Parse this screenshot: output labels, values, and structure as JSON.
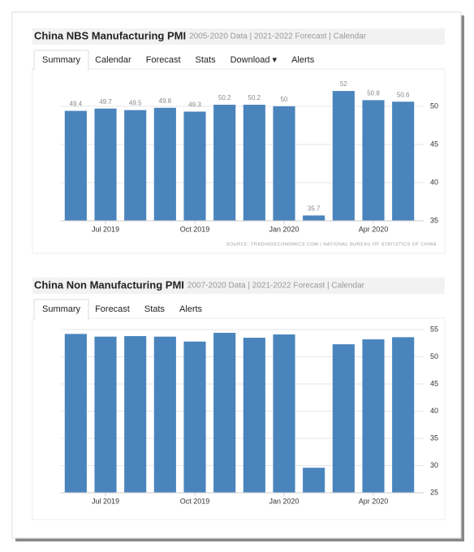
{
  "chart_data": [
    {
      "type": "bar",
      "title": "China NBS Manufacturing PMI",
      "subtitle": "2005-2020 Data | 2021-2022 Forecast | Calendar",
      "tabs": [
        "Summary",
        "Calendar",
        "Forecast",
        "Stats",
        "Download ▾",
        "Alerts"
      ],
      "categories": [
        null,
        "Jul 2019",
        null,
        null,
        "Oct 2019",
        null,
        null,
        "Jan 2020",
        null,
        null,
        "Apr 2020",
        null
      ],
      "values": [
        49.4,
        49.7,
        49.5,
        49.8,
        49.3,
        50.2,
        50.2,
        50,
        35.7,
        52,
        50.8,
        50.6
      ],
      "color": "#4a84bd",
      "ylim": [
        35,
        53.5
      ],
      "yticks": [
        35,
        40,
        45,
        50
      ],
      "grid": true,
      "data_labels": true,
      "source": "SOURCE: TRADINGECONOMICS.COM | NATIONAL BUREAU OF STATISTICS OF CHINA"
    },
    {
      "type": "bar",
      "title": "China Non Manufacturing PMI",
      "subtitle": "2007-2020 Data | 2021-2022 Forecast | Calendar",
      "tabs": [
        "Summary",
        "Forecast",
        "Stats",
        "Alerts"
      ],
      "categories": [
        null,
        "Jul 2019",
        null,
        null,
        "Oct 2019",
        null,
        null,
        "Jan 2020",
        null,
        null,
        "Apr 2020",
        null
      ],
      "values": [
        54.2,
        53.7,
        53.8,
        53.7,
        52.8,
        54.4,
        53.5,
        54.1,
        29.6,
        52.3,
        53.2,
        53.6
      ],
      "color": "#4a84bd",
      "ylim": [
        25,
        55
      ],
      "yticks": [
        25,
        30,
        35,
        40,
        45,
        50,
        55
      ],
      "grid": true,
      "data_labels": false
    }
  ]
}
